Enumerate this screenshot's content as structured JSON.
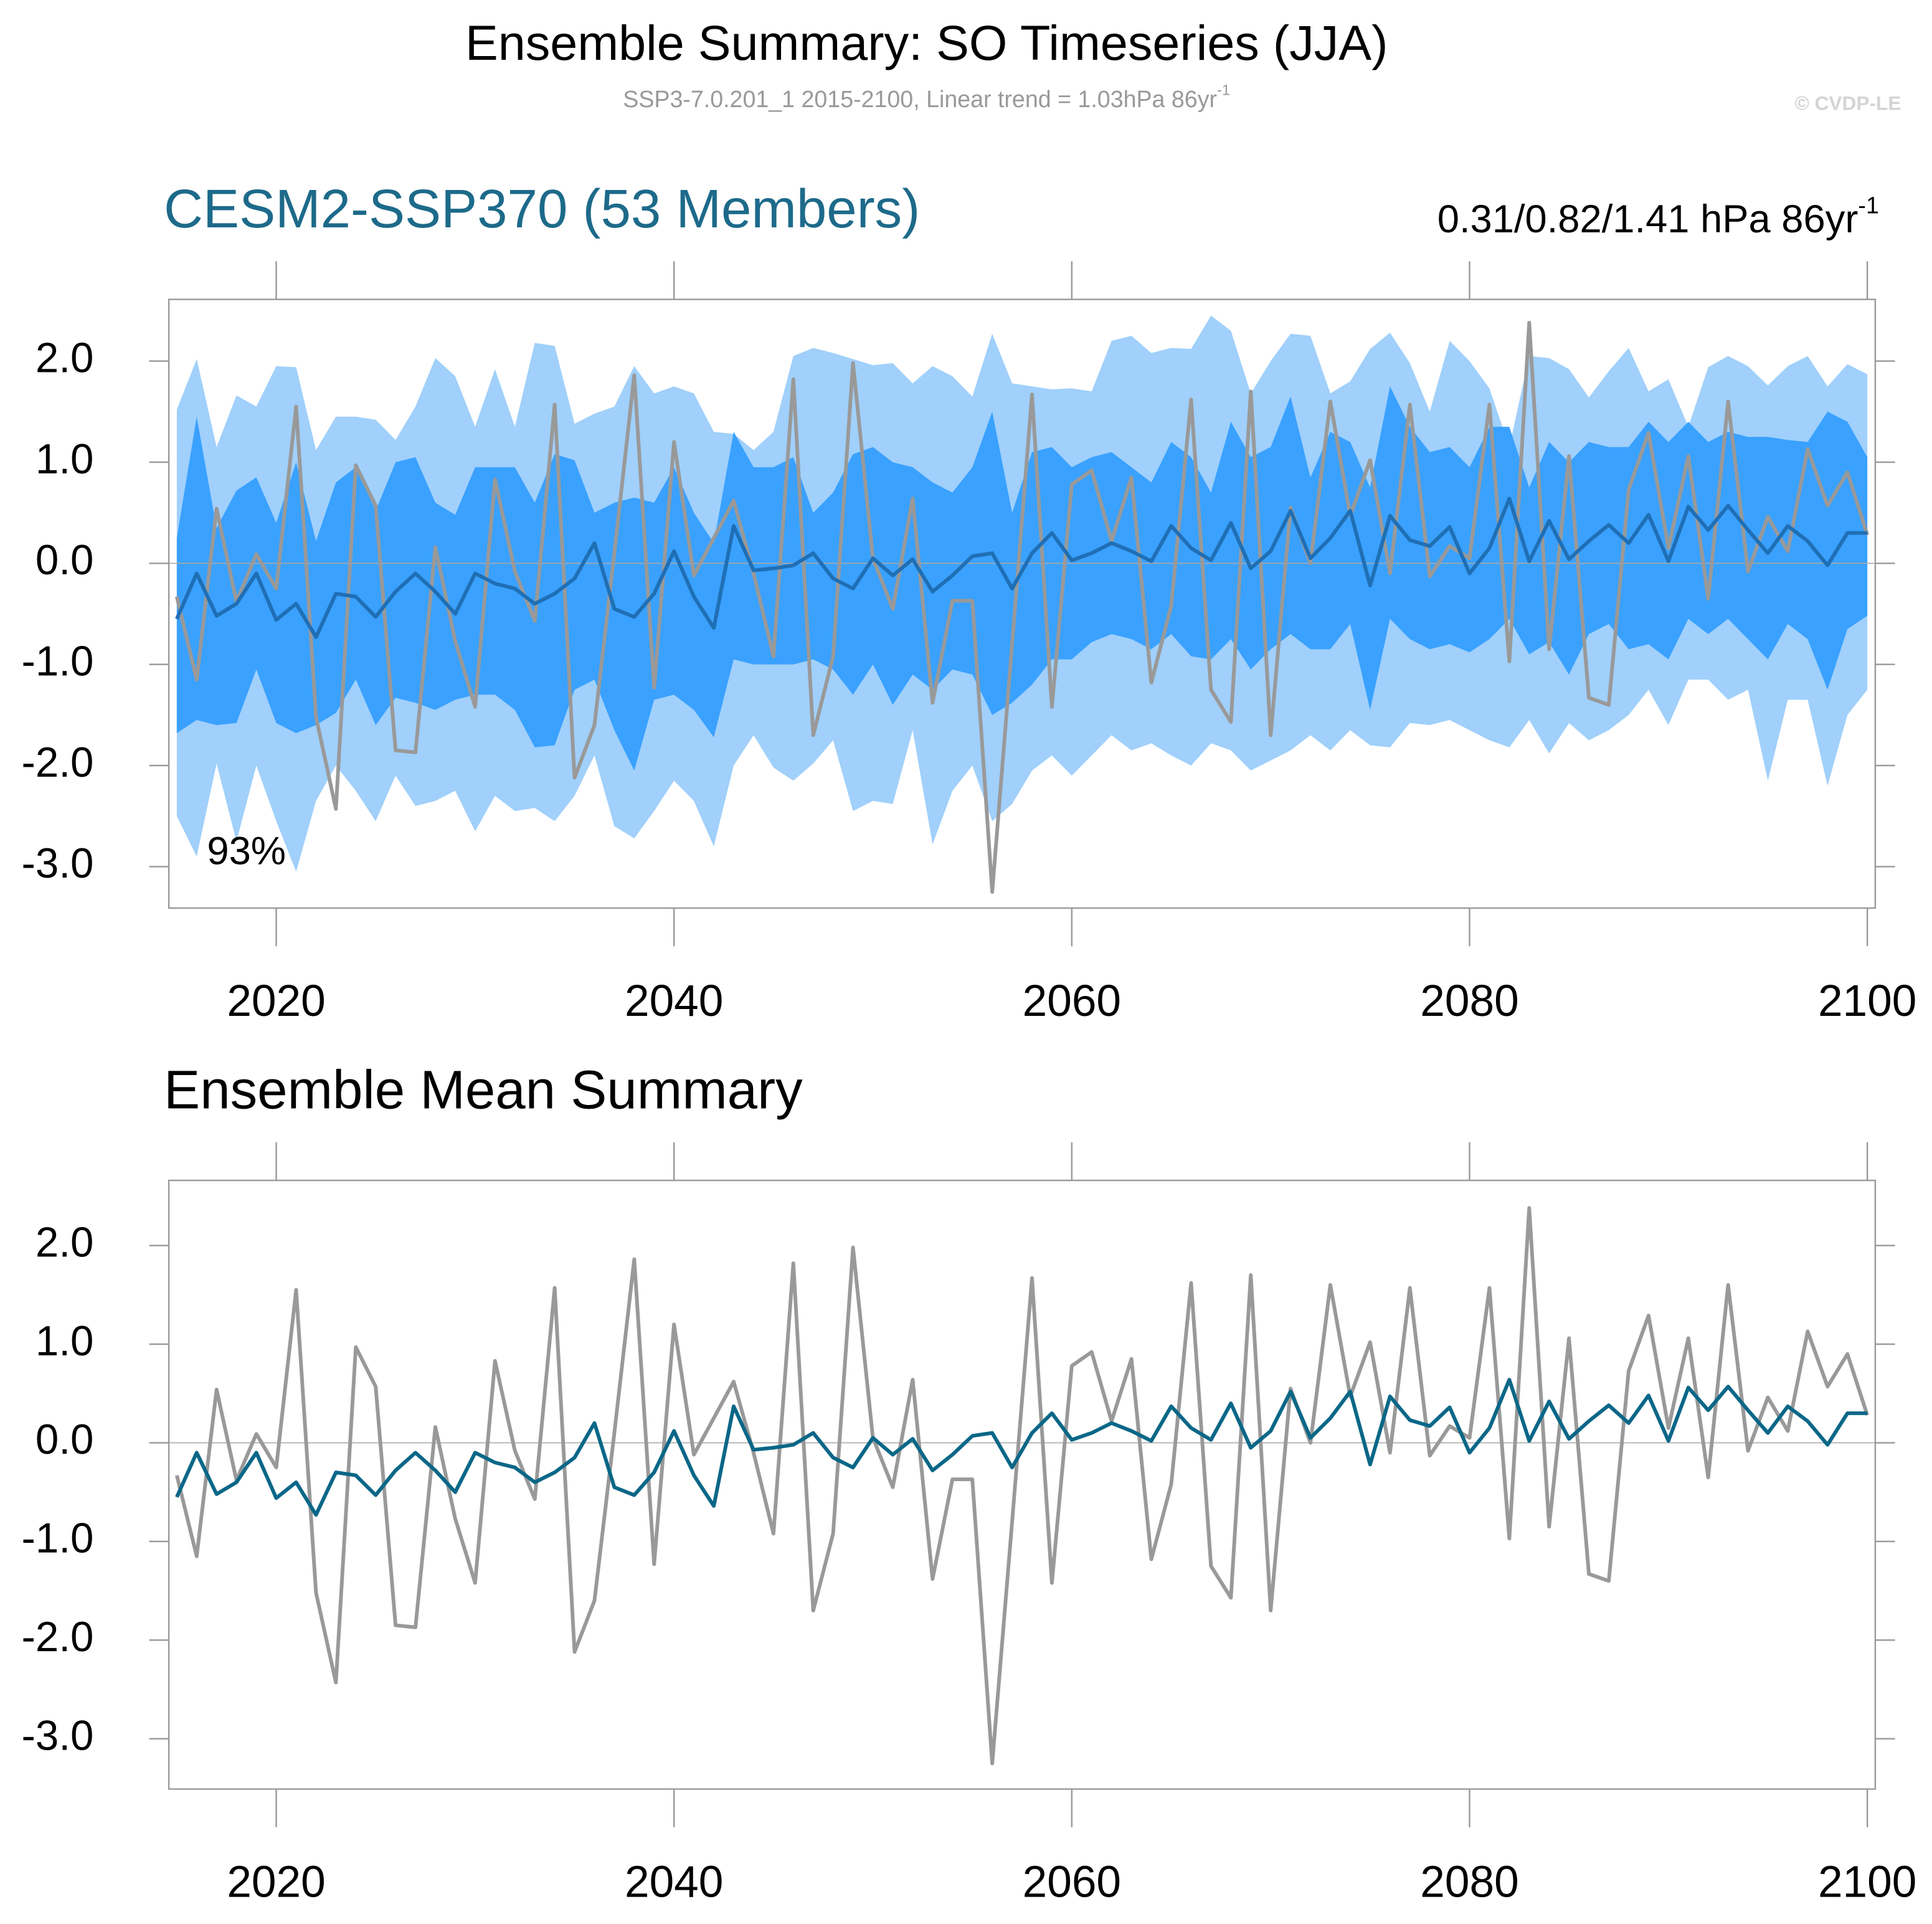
{
  "header": {
    "title": "Ensemble Summary: SO Timeseries (JJA)",
    "subtitle": "SSP3-7.0.201_1 2015-2100, Linear trend = 1.03hPa 86yr",
    "subtitle_superscript": "-1",
    "copyright": "© CVDP-LE"
  },
  "chart_data": [
    {
      "type": "line",
      "title": "CESM2-SSP370 (53 Members)",
      "title_color": "#1d6a8a",
      "right_title": "0.31/0.82/1.41 hPa 86yr",
      "right_title_superscript": "-1",
      "annotation": "93%",
      "x": [
        2015,
        2016,
        2017,
        2018,
        2019,
        2020,
        2021,
        2022,
        2023,
        2024,
        2025,
        2026,
        2027,
        2028,
        2029,
        2030,
        2031,
        2032,
        2033,
        2034,
        2035,
        2036,
        2037,
        2038,
        2039,
        2040,
        2041,
        2042,
        2043,
        2044,
        2045,
        2046,
        2047,
        2048,
        2049,
        2050,
        2051,
        2052,
        2053,
        2054,
        2055,
        2056,
        2057,
        2058,
        2059,
        2060,
        2061,
        2062,
        2063,
        2064,
        2065,
        2066,
        2067,
        2068,
        2069,
        2070,
        2071,
        2072,
        2073,
        2074,
        2075,
        2076,
        2077,
        2078,
        2079,
        2080,
        2081,
        2082,
        2083,
        2084,
        2085,
        2086,
        2087,
        2088,
        2089,
        2090,
        2091,
        2092,
        2093,
        2094,
        2095,
        2096,
        2097,
        2098,
        2099,
        2100
      ],
      "bands": [
        {
          "color": "#a0d0fb",
          "upper": [
            1.52,
            2.02,
            1.15,
            1.66,
            1.55,
            1.95,
            1.94,
            1.12,
            1.45,
            1.45,
            1.42,
            1.22,
            1.55,
            2.03,
            1.85,
            1.35,
            1.92,
            1.35,
            2.18,
            2.15,
            1.38,
            1.48,
            1.55,
            1.95,
            1.68,
            1.75,
            1.68,
            1.3,
            1.28,
            1.12,
            1.3,
            2.05,
            2.13,
            2.08,
            2.02,
            1.96,
            1.98,
            1.78,
            1.95,
            1.85,
            1.65,
            2.27,
            1.78,
            1.75,
            1.72,
            1.73,
            1.7,
            2.2,
            2.25,
            2.08,
            2.13,
            2.12,
            2.45,
            2.3,
            1.68,
            2.0,
            2.27,
            2.25,
            1.68,
            1.8,
            2.12,
            2.28,
            1.98,
            1.5,
            2.2,
            2.0,
            1.73,
            1.15,
            2.05,
            2.03,
            1.92,
            1.64,
            1.9,
            2.13,
            1.7,
            1.82,
            1.35,
            1.94,
            2.05,
            1.95,
            1.76,
            1.95,
            2.05,
            1.75,
            1.97,
            1.87
          ],
          "lower": [
            -2.5,
            -2.9,
            -1.98,
            -2.75,
            -2.0,
            -2.55,
            -3.05,
            -2.35,
            -2.0,
            -2.25,
            -2.55,
            -2.1,
            -2.4,
            -2.35,
            -2.25,
            -2.65,
            -2.3,
            -2.45,
            -2.42,
            -2.55,
            -2.3,
            -1.9,
            -2.6,
            -2.72,
            -2.45,
            -2.15,
            -2.35,
            -2.8,
            -2.0,
            -1.7,
            -2.02,
            -2.15,
            -1.98,
            -1.75,
            -2.45,
            -2.35,
            -2.38,
            -1.65,
            -2.78,
            -2.25,
            -2.0,
            -2.55,
            -2.38,
            -2.05,
            -1.9,
            -2.1,
            -1.9,
            -1.7,
            -1.85,
            -1.78,
            -1.9,
            -2.0,
            -1.78,
            -1.85,
            -2.05,
            -1.95,
            -1.85,
            -1.7,
            -1.85,
            -1.65,
            -1.8,
            -1.82,
            -1.58,
            -1.6,
            -1.55,
            -1.65,
            -1.75,
            -1.82,
            -1.55,
            -1.88,
            -1.58,
            -1.75,
            -1.65,
            -1.5,
            -1.25,
            -1.6,
            -1.15,
            -1.15,
            -1.35,
            -1.25,
            -2.15,
            -1.35,
            -1.35,
            -2.2,
            -1.5,
            -1.25
          ]
        },
        {
          "color": "#3aa1ff",
          "upper": [
            0.25,
            1.45,
            0.35,
            0.72,
            0.85,
            0.4,
            1.0,
            0.22,
            0.8,
            0.95,
            0.52,
            1.0,
            1.05,
            0.6,
            0.48,
            0.95,
            0.95,
            0.95,
            0.6,
            1.08,
            1.02,
            0.5,
            0.6,
            0.65,
            0.6,
            0.95,
            0.5,
            0.2,
            1.3,
            0.95,
            0.95,
            1.05,
            0.5,
            0.7,
            1.08,
            1.15,
            1.0,
            0.95,
            0.8,
            0.7,
            0.95,
            1.5,
            0.5,
            1.1,
            1.15,
            0.95,
            1.05,
            1.1,
            0.95,
            0.8,
            1.2,
            1.05,
            0.7,
            1.4,
            1.05,
            1.15,
            1.65,
            0.85,
            1.3,
            1.2,
            0.75,
            1.75,
            1.35,
            1.1,
            1.15,
            0.95,
            1.35,
            1.35,
            0.75,
            1.2,
            1.0,
            1.2,
            1.15,
            1.15,
            1.4,
            1.2,
            1.4,
            1.2,
            1.3,
            1.25,
            1.25,
            1.22,
            1.2,
            1.5,
            1.4,
            1.05
          ],
          "lower": [
            -1.68,
            -1.55,
            -1.6,
            -1.58,
            -1.05,
            -1.58,
            -1.68,
            -1.6,
            -1.48,
            -1.15,
            -1.6,
            -1.33,
            -1.38,
            -1.45,
            -1.35,
            -1.3,
            -1.3,
            -1.45,
            -1.82,
            -1.8,
            -1.25,
            -1.15,
            -1.65,
            -2.05,
            -1.35,
            -1.3,
            -1.45,
            -1.72,
            -0.95,
            -1.0,
            -1.0,
            -1.0,
            -0.95,
            -1.05,
            -1.3,
            -1.0,
            -1.4,
            -1.1,
            -1.25,
            -1.05,
            -1.1,
            -1.5,
            -1.38,
            -1.2,
            -0.95,
            -0.95,
            -0.78,
            -0.7,
            -0.75,
            -0.85,
            -0.7,
            -0.92,
            -0.95,
            -0.75,
            -1.05,
            -0.85,
            -0.7,
            -0.85,
            -0.85,
            -0.6,
            -1.45,
            -0.55,
            -0.75,
            -0.85,
            -0.8,
            -0.88,
            -0.75,
            -0.55,
            -0.9,
            -0.78,
            -1.1,
            -0.7,
            -0.6,
            -0.85,
            -0.8,
            -0.95,
            -0.55,
            -0.7,
            -0.55,
            -0.75,
            -0.95,
            -0.6,
            -0.75,
            -1.25,
            -0.65,
            -0.52
          ]
        }
      ],
      "series": [
        {
          "color": "#999999",
          "values": [
            -0.33,
            -1.15,
            0.54,
            -0.38,
            0.09,
            -0.25,
            1.55,
            -1.52,
            -2.43,
            0.97,
            0.57,
            -1.85,
            -1.87,
            0.16,
            -0.77,
            -1.42,
            0.83,
            -0.08,
            -0.57,
            1.57,
            -2.12,
            -1.6,
            0.1,
            1.86,
            -1.23,
            1.2,
            -0.12,
            0.25,
            0.62,
            -0.1,
            -0.92,
            1.82,
            -1.7,
            -0.92,
            1.98,
            0.05,
            -0.45,
            0.64,
            -1.38,
            -0.37,
            -0.37,
            -3.25,
            -0.8,
            1.67,
            -1.42,
            0.78,
            0.92,
            0.22,
            0.85,
            -1.18,
            -0.42,
            1.62,
            -1.25,
            -1.57,
            1.7,
            -1.7,
            0.55,
            0.0,
            1.6,
            0.47,
            1.02,
            -0.1,
            1.57,
            -0.13,
            0.17,
            0.05,
            1.57,
            -0.97,
            2.38,
            -0.85,
            1.06,
            -1.33,
            -1.4,
            0.73,
            1.29,
            0.15,
            1.06,
            -0.35,
            1.6,
            -0.08,
            0.46,
            0.12,
            1.13,
            0.57,
            0.9,
            0.28
          ]
        },
        {
          "color": "#1f6fb5",
          "values": [
            -0.55,
            -0.1,
            -0.52,
            -0.4,
            -0.1,
            -0.56,
            -0.4,
            -0.73,
            -0.3,
            -0.33,
            -0.53,
            -0.28,
            -0.1,
            -0.28,
            -0.5,
            -0.1,
            -0.2,
            -0.25,
            -0.4,
            -0.3,
            -0.15,
            0.2,
            -0.45,
            -0.53,
            -0.3,
            0.12,
            -0.33,
            -0.64,
            0.37,
            -0.07,
            -0.05,
            -0.02,
            0.1,
            -0.15,
            -0.25,
            0.05,
            -0.12,
            0.04,
            -0.28,
            -0.12,
            0.07,
            0.1,
            -0.25,
            0.1,
            0.3,
            0.03,
            0.1,
            0.2,
            0.12,
            0.02,
            0.37,
            0.15,
            0.03,
            0.4,
            -0.05,
            0.12,
            0.52,
            0.05,
            0.25,
            0.52,
            -0.22,
            0.47,
            0.23,
            0.17,
            0.36,
            -0.1,
            0.15,
            0.64,
            0.02,
            0.42,
            0.04,
            0.22,
            0.38,
            0.2,
            0.48,
            0.02,
            0.56,
            0.33,
            0.57,
            0.33,
            0.1,
            0.37,
            0.22,
            -0.02,
            0.3,
            0.3
          ]
        }
      ],
      "reference_line": 0,
      "xlim": [
        2014.6,
        2100.4
      ],
      "xticks": [
        2020,
        2040,
        2060,
        2080,
        2100
      ],
      "ylim": [
        -3.41,
        2.61
      ],
      "yticks": [
        {
          "value": -3,
          "label": "-3.0"
        },
        {
          "value": -2,
          "label": "-2.0"
        },
        {
          "value": -1,
          "label": "-1.0"
        },
        {
          "value": 0,
          "label": "0.0"
        },
        {
          "value": 1,
          "label": "1.0"
        },
        {
          "value": 2,
          "label": "2.0"
        }
      ]
    },
    {
      "type": "line",
      "title": "Ensemble Mean Summary",
      "title_color": "#000000",
      "x": [
        2015,
        2016,
        2017,
        2018,
        2019,
        2020,
        2021,
        2022,
        2023,
        2024,
        2025,
        2026,
        2027,
        2028,
        2029,
        2030,
        2031,
        2032,
        2033,
        2034,
        2035,
        2036,
        2037,
        2038,
        2039,
        2040,
        2041,
        2042,
        2043,
        2044,
        2045,
        2046,
        2047,
        2048,
        2049,
        2050,
        2051,
        2052,
        2053,
        2054,
        2055,
        2056,
        2057,
        2058,
        2059,
        2060,
        2061,
        2062,
        2063,
        2064,
        2065,
        2066,
        2067,
        2068,
        2069,
        2070,
        2071,
        2072,
        2073,
        2074,
        2075,
        2076,
        2077,
        2078,
        2079,
        2080,
        2081,
        2082,
        2083,
        2084,
        2085,
        2086,
        2087,
        2088,
        2089,
        2090,
        2091,
        2092,
        2093,
        2094,
        2095,
        2096,
        2097,
        2098,
        2099,
        2100
      ],
      "series": [
        {
          "color": "#999999",
          "values": [
            -0.33,
            -1.15,
            0.54,
            -0.38,
            0.09,
            -0.25,
            1.55,
            -1.52,
            -2.43,
            0.97,
            0.57,
            -1.85,
            -1.87,
            0.16,
            -0.77,
            -1.42,
            0.83,
            -0.08,
            -0.57,
            1.57,
            -2.12,
            -1.6,
            0.1,
            1.86,
            -1.23,
            1.2,
            -0.12,
            0.25,
            0.62,
            -0.1,
            -0.92,
            1.82,
            -1.7,
            -0.92,
            1.98,
            0.05,
            -0.45,
            0.64,
            -1.38,
            -0.37,
            -0.37,
            -3.25,
            -0.8,
            1.67,
            -1.42,
            0.78,
            0.92,
            0.22,
            0.85,
            -1.18,
            -0.42,
            1.62,
            -1.25,
            -1.57,
            1.7,
            -1.7,
            0.55,
            0.0,
            1.6,
            0.47,
            1.02,
            -0.1,
            1.57,
            -0.13,
            0.17,
            0.05,
            1.57,
            -0.97,
            2.38,
            -0.85,
            1.06,
            -1.33,
            -1.4,
            0.73,
            1.29,
            0.15,
            1.06,
            -0.35,
            1.6,
            -0.08,
            0.46,
            0.12,
            1.13,
            0.57,
            0.9,
            0.28
          ]
        },
        {
          "color": "#0b6787",
          "values": [
            -0.55,
            -0.1,
            -0.52,
            -0.4,
            -0.1,
            -0.56,
            -0.4,
            -0.73,
            -0.3,
            -0.33,
            -0.53,
            -0.28,
            -0.1,
            -0.28,
            -0.5,
            -0.1,
            -0.2,
            -0.25,
            -0.4,
            -0.3,
            -0.15,
            0.2,
            -0.45,
            -0.53,
            -0.3,
            0.12,
            -0.33,
            -0.64,
            0.37,
            -0.07,
            -0.05,
            -0.02,
            0.1,
            -0.15,
            -0.25,
            0.05,
            -0.12,
            0.04,
            -0.28,
            -0.12,
            0.07,
            0.1,
            -0.25,
            0.1,
            0.3,
            0.03,
            0.1,
            0.2,
            0.12,
            0.02,
            0.37,
            0.15,
            0.03,
            0.4,
            -0.05,
            0.12,
            0.52,
            0.05,
            0.25,
            0.52,
            -0.22,
            0.47,
            0.23,
            0.17,
            0.36,
            -0.1,
            0.15,
            0.64,
            0.02,
            0.42,
            0.04,
            0.22,
            0.38,
            0.2,
            0.48,
            0.02,
            0.56,
            0.33,
            0.57,
            0.33,
            0.1,
            0.37,
            0.22,
            -0.02,
            0.3,
            0.3
          ]
        }
      ],
      "reference_line": 0,
      "xlim": [
        2014.6,
        2100.4
      ],
      "xticks": [
        2020,
        2040,
        2060,
        2080,
        2100
      ],
      "ylim": [
        -3.51,
        2.66
      ],
      "yticks": [
        {
          "value": -3,
          "label": "-3.0"
        },
        {
          "value": -2,
          "label": "-2.0"
        },
        {
          "value": -1,
          "label": "-1.0"
        },
        {
          "value": 0,
          "label": "0.0"
        },
        {
          "value": 1,
          "label": "1.0"
        },
        {
          "value": 2,
          "label": "2.0"
        }
      ]
    }
  ]
}
